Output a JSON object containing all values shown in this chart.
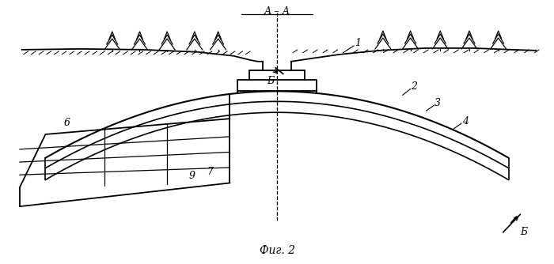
{
  "bg_color": "#ffffff",
  "line_color": "#000000",
  "fig_width": 7.0,
  "fig_height": 3.34,
  "dpi": 100,
  "caption": "Фиг. 2",
  "section_label": "А – А",
  "label_B": "Б"
}
